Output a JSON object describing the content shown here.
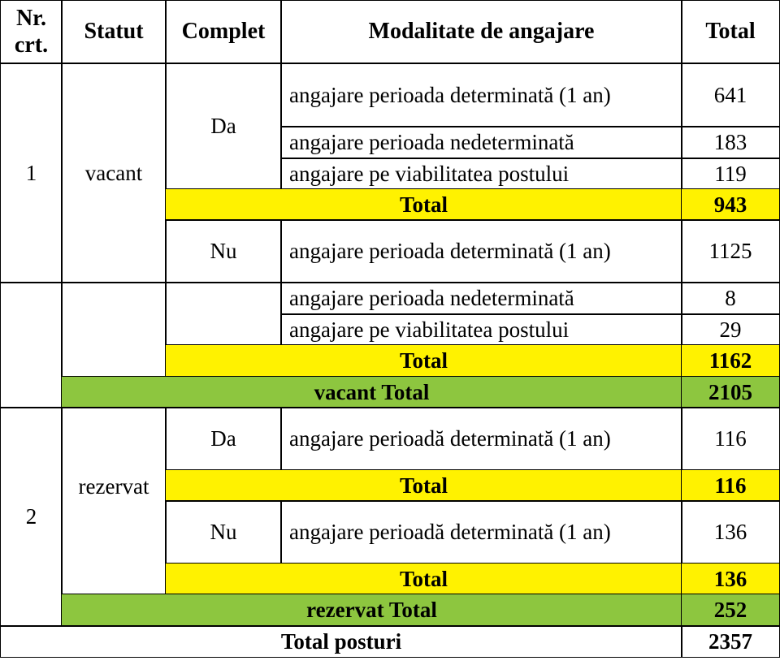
{
  "table": {
    "header": [
      "Nr. crt.",
      "Statut",
      "Complet",
      "Modalitate de angajare",
      "Total"
    ],
    "sections": [
      {
        "nr": "1",
        "statut": "vacant",
        "subgroups": [
          {
            "complet": "Da",
            "rows": [
              {
                "modalitate": "angajare perioada determinată (1 an)",
                "total": 641
              },
              {
                "modalitate": "angajare perioada nedeterminată",
                "total": 183
              },
              {
                "modalitate": "angajare pe viabilitatea postului",
                "total": 119
              }
            ],
            "total_label": "Total",
            "total": 943
          },
          {
            "complet": "Nu",
            "rows": [
              {
                "modalitate": "angajare perioada determinată (1 an)",
                "total": 1125
              },
              {
                "modalitate": "angajare perioada nedeterminată",
                "total": 8
              },
              {
                "modalitate": "angajare pe viabilitatea postului",
                "total": 29
              }
            ],
            "total_label": "Total",
            "total": 1162
          }
        ],
        "total_label": "vacant Total",
        "total": 2105
      },
      {
        "nr": "2",
        "statut": "rezervat",
        "subgroups": [
          {
            "complet": "Da",
            "rows": [
              {
                "modalitate": "angajare perioadă determinată (1 an)",
                "total": 116
              }
            ],
            "total_label": "Total",
            "total": 116
          },
          {
            "complet": "Nu",
            "rows": [
              {
                "modalitate": "angajare perioadă determinată (1 an)",
                "total": 136
              }
            ],
            "total_label": "Total",
            "total": 136
          }
        ],
        "total_label": "rezervat Total",
        "total": 252
      }
    ],
    "grand_total_label": "Total posturi",
    "grand_total": 2357
  }
}
